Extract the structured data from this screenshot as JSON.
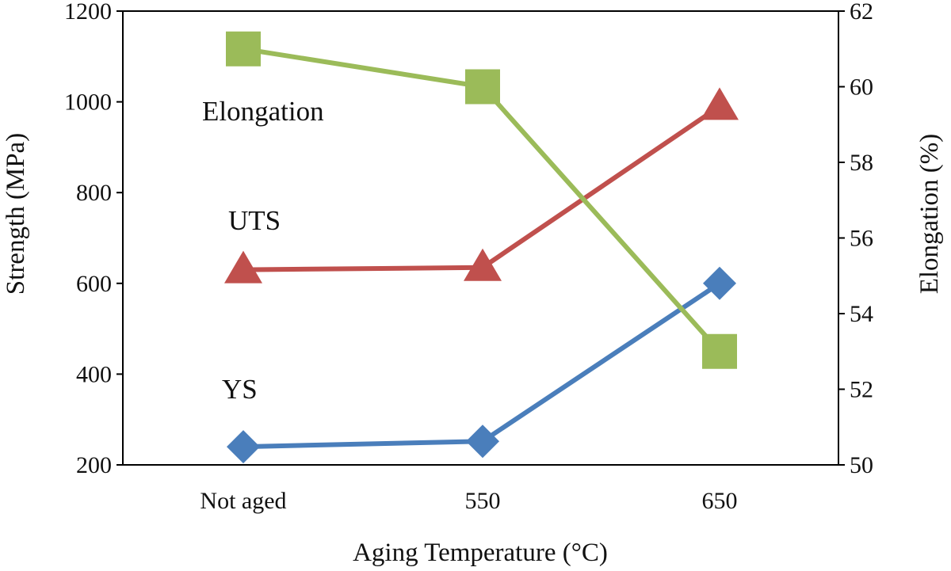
{
  "chart_data": {
    "type": "line",
    "categories": [
      "Not aged",
      "550",
      "650"
    ],
    "xlabel": "Aging Temperature (°C)",
    "ylabel_left": "Strength (MPa)",
    "ylabel_right": "Elongation (%)",
    "ylim_left": [
      200,
      1200
    ],
    "yticks_left": [
      200,
      400,
      600,
      800,
      1000,
      1200
    ],
    "ylim_right": [
      50,
      62
    ],
    "yticks_right": [
      50,
      52,
      54,
      56,
      58,
      60,
      62
    ],
    "grid": false,
    "legend": "none",
    "series": [
      {
        "name": "YS",
        "axis": "left",
        "marker": "diamond",
        "color": "#4a7ebb",
        "values": [
          240,
          252,
          600
        ]
      },
      {
        "name": "UTS",
        "axis": "left",
        "marker": "triangle",
        "color": "#c0504d",
        "values": [
          630,
          635,
          990
        ]
      },
      {
        "name": "Elongation",
        "axis": "right",
        "marker": "square",
        "color": "#9bbb59",
        "values": [
          61,
          60,
          53
        ]
      }
    ]
  }
}
